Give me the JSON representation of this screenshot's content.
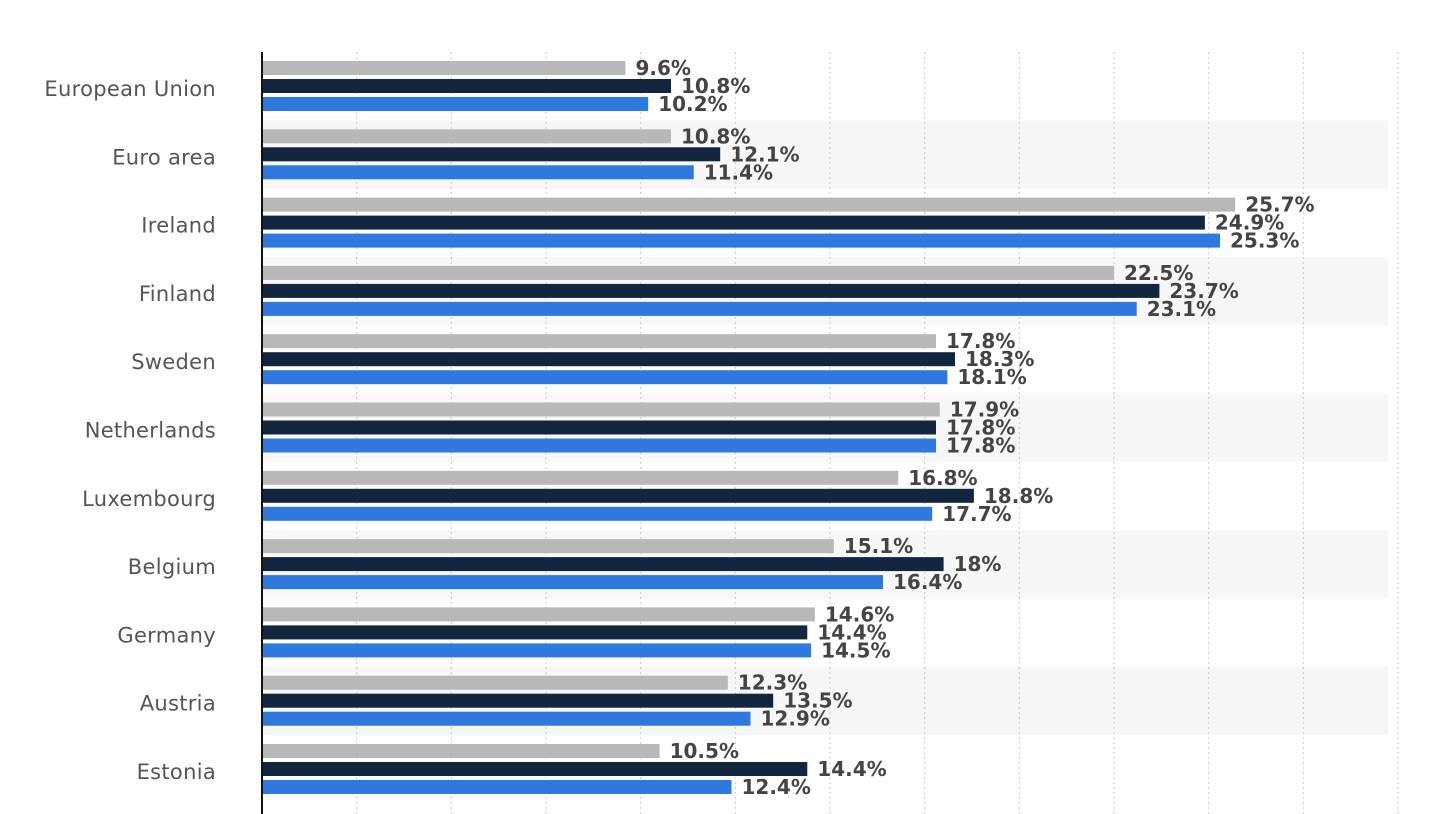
{
  "chart_data": {
    "type": "bar",
    "orientation": "horizontal",
    "title": "",
    "xlabel": "",
    "ylabel": "",
    "xlim": [
      0,
      30
    ],
    "grid": true,
    "value_suffix": "%",
    "categories": [
      "European Union",
      "Euro area",
      "Ireland",
      "Finland",
      "Sweden",
      "Netherlands",
      "Luxembourg",
      "Belgium",
      "Germany",
      "Austria",
      "Estonia"
    ],
    "series": [
      {
        "name": "Series 1",
        "color": "#b8b8b8",
        "values": [
          9.6,
          10.8,
          25.7,
          22.5,
          17.8,
          17.9,
          16.8,
          15.1,
          14.6,
          12.3,
          10.5
        ],
        "labels": [
          "9.6%",
          "10.8%",
          "25.7%",
          "22.5%",
          "17.8%",
          "17.9%",
          "16.8%",
          "15.1%",
          "14.6%",
          "12.3%",
          "10.5%"
        ]
      },
      {
        "name": "Series 2",
        "color": "#13263f",
        "values": [
          10.8,
          12.1,
          24.9,
          23.7,
          18.3,
          17.8,
          18.8,
          18.0,
          14.4,
          13.5,
          14.4
        ],
        "labels": [
          "10.8%",
          "12.1%",
          "24.9%",
          "23.7%",
          "18.3%",
          "17.8%",
          "18.8%",
          "18%",
          "14.4%",
          "13.5%",
          "14.4%"
        ]
      },
      {
        "name": "Series 3",
        "color": "#2f78dd",
        "values": [
          10.2,
          11.4,
          25.3,
          23.1,
          18.1,
          17.8,
          17.7,
          16.4,
          14.5,
          12.9,
          12.4
        ],
        "labels": [
          "10.2%",
          "11.4%",
          "25.3%",
          "23.1%",
          "18.1%",
          "17.8%",
          "17.7%",
          "16.4%",
          "14.5%",
          "12.9%",
          "12.4%"
        ]
      }
    ]
  }
}
